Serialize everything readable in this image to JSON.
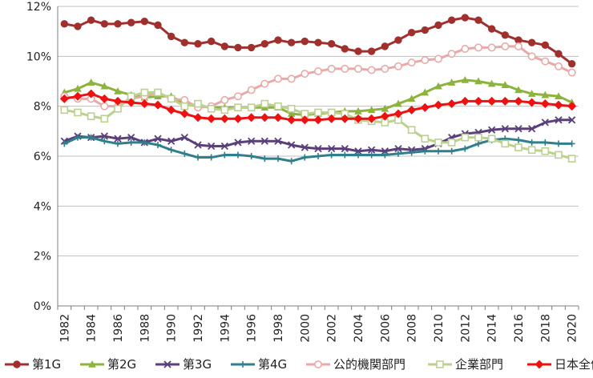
{
  "chart_data": {
    "type": "line",
    "title": "",
    "xlabel": "",
    "ylabel": "",
    "ylim": [
      0,
      12
    ],
    "y_ticks": [
      "0%",
      "2%",
      "4%",
      "6%",
      "8%",
      "10%",
      "12%"
    ],
    "y_tick_values": [
      0,
      2,
      4,
      6,
      8,
      10,
      12
    ],
    "x": [
      1982,
      1983,
      1984,
      1985,
      1986,
      1987,
      1988,
      1989,
      1990,
      1991,
      1992,
      1993,
      1994,
      1995,
      1996,
      1997,
      1998,
      1999,
      2000,
      2001,
      2002,
      2003,
      2004,
      2005,
      2006,
      2007,
      2008,
      2009,
      2010,
      2011,
      2012,
      2013,
      2014,
      2015,
      2016,
      2017,
      2018,
      2019,
      2020
    ],
    "x_tick_labels": [
      "1982",
      "1984",
      "1986",
      "1988",
      "1990",
      "1992",
      "1994",
      "1996",
      "1998",
      "2000",
      "2002",
      "2004",
      "2006",
      "2008",
      "2010",
      "2012",
      "2014",
      "2016",
      "2018",
      "2020"
    ],
    "legend_position": "bottom",
    "series": [
      {
        "name": "第1G",
        "color": "#a0302e",
        "marker": "circle",
        "values": [
          11.3,
          11.2,
          11.45,
          11.3,
          11.3,
          11.35,
          11.4,
          11.25,
          10.8,
          10.55,
          10.5,
          10.6,
          10.4,
          10.35,
          10.35,
          10.5,
          10.65,
          10.55,
          10.6,
          10.55,
          10.5,
          10.3,
          10.2,
          10.2,
          10.4,
          10.65,
          10.95,
          11.05,
          11.25,
          11.45,
          11.55,
          11.45,
          11.1,
          10.85,
          10.65,
          10.55,
          10.45,
          10.1,
          9.7
        ]
      },
      {
        "name": "第2G",
        "color": "#8db33c",
        "marker": "triangle",
        "values": [
          8.55,
          8.7,
          8.95,
          8.8,
          8.6,
          8.45,
          8.35,
          8.4,
          8.4,
          8.1,
          8.0,
          7.95,
          7.95,
          7.95,
          7.95,
          7.95,
          7.95,
          7.7,
          7.65,
          7.7,
          7.75,
          7.8,
          7.8,
          7.85,
          7.9,
          8.1,
          8.3,
          8.55,
          8.8,
          8.95,
          9.05,
          9.0,
          8.9,
          8.85,
          8.65,
          8.5,
          8.45,
          8.4,
          8.15
        ]
      },
      {
        "name": "第3G",
        "color": "#5a3f7a",
        "marker": "x",
        "values": [
          6.6,
          6.8,
          6.75,
          6.8,
          6.7,
          6.75,
          6.55,
          6.7,
          6.6,
          6.75,
          6.45,
          6.4,
          6.4,
          6.55,
          6.6,
          6.6,
          6.6,
          6.45,
          6.35,
          6.3,
          6.3,
          6.3,
          6.2,
          6.25,
          6.2,
          6.3,
          6.25,
          6.3,
          6.5,
          6.75,
          6.9,
          6.95,
          7.05,
          7.1,
          7.1,
          7.1,
          7.35,
          7.45,
          7.45
        ]
      },
      {
        "name": "第4G",
        "color": "#2f7f8c",
        "marker": "plus",
        "values": [
          6.5,
          6.75,
          6.75,
          6.6,
          6.5,
          6.55,
          6.55,
          6.45,
          6.25,
          6.1,
          5.95,
          5.95,
          6.05,
          6.05,
          6.0,
          5.9,
          5.9,
          5.8,
          5.95,
          6.0,
          6.05,
          6.05,
          6.05,
          6.05,
          6.05,
          6.1,
          6.15,
          6.2,
          6.2,
          6.2,
          6.3,
          6.5,
          6.65,
          6.7,
          6.65,
          6.55,
          6.55,
          6.5,
          6.5
        ]
      },
      {
        "name": "公的機関部門",
        "color": "#e8aaa9",
        "marker": "circle-open",
        "values": [
          8.4,
          8.3,
          8.3,
          8.0,
          8.0,
          8.3,
          8.4,
          8.55,
          8.3,
          8.25,
          7.95,
          8.0,
          8.25,
          8.4,
          8.65,
          8.9,
          9.1,
          9.1,
          9.3,
          9.4,
          9.5,
          9.5,
          9.5,
          9.45,
          9.5,
          9.6,
          9.75,
          9.85,
          9.9,
          10.1,
          10.3,
          10.35,
          10.35,
          10.4,
          10.4,
          10.0,
          9.8,
          9.6,
          9.35
        ]
      },
      {
        "name": "企業部門",
        "color": "#bcd08f",
        "marker": "square-open",
        "values": [
          7.85,
          7.75,
          7.6,
          7.5,
          7.9,
          8.4,
          8.55,
          8.55,
          8.3,
          8.0,
          8.1,
          7.9,
          7.85,
          7.95,
          7.95,
          8.1,
          8.0,
          7.9,
          7.7,
          7.75,
          7.75,
          7.7,
          7.45,
          7.4,
          7.35,
          7.45,
          7.05,
          6.7,
          6.55,
          6.55,
          6.75,
          6.75,
          6.7,
          6.5,
          6.35,
          6.25,
          6.2,
          6.05,
          5.9
        ]
      },
      {
        "name": "日本全体",
        "color": "#ee1111",
        "marker": "diamond",
        "values": [
          8.3,
          8.4,
          8.5,
          8.3,
          8.2,
          8.15,
          8.1,
          8.05,
          7.85,
          7.7,
          7.55,
          7.5,
          7.5,
          7.5,
          7.55,
          7.55,
          7.55,
          7.45,
          7.45,
          7.45,
          7.5,
          7.5,
          7.5,
          7.5,
          7.6,
          7.7,
          7.85,
          7.95,
          8.05,
          8.1,
          8.2,
          8.2,
          8.2,
          8.2,
          8.2,
          8.15,
          8.1,
          8.05,
          8.0
        ]
      }
    ]
  }
}
